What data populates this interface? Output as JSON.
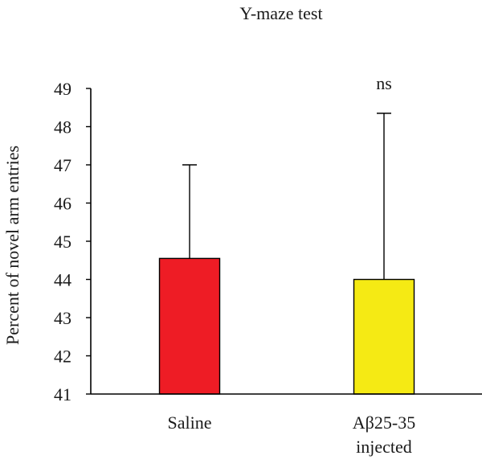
{
  "chart_data": {
    "type": "bar",
    "title": "Y-maze test",
    "ylabel": "Percent of novel arm entries",
    "xlabel": "",
    "ylim": [
      41,
      49
    ],
    "yticks": [
      41,
      42,
      43,
      44,
      45,
      46,
      47,
      48,
      49
    ],
    "categories": [
      {
        "lines": [
          "Saline"
        ]
      },
      {
        "lines": [
          "Aβ25-35",
          "injected"
        ]
      }
    ],
    "values": [
      44.55,
      44.0
    ],
    "error_upper": [
      47.0,
      48.35
    ],
    "colors": [
      "#ee1c25",
      "#f5ea14"
    ],
    "annotations": [
      {
        "category_index": 1,
        "text": "ns"
      }
    ],
    "grid": false,
    "legend": "none"
  }
}
